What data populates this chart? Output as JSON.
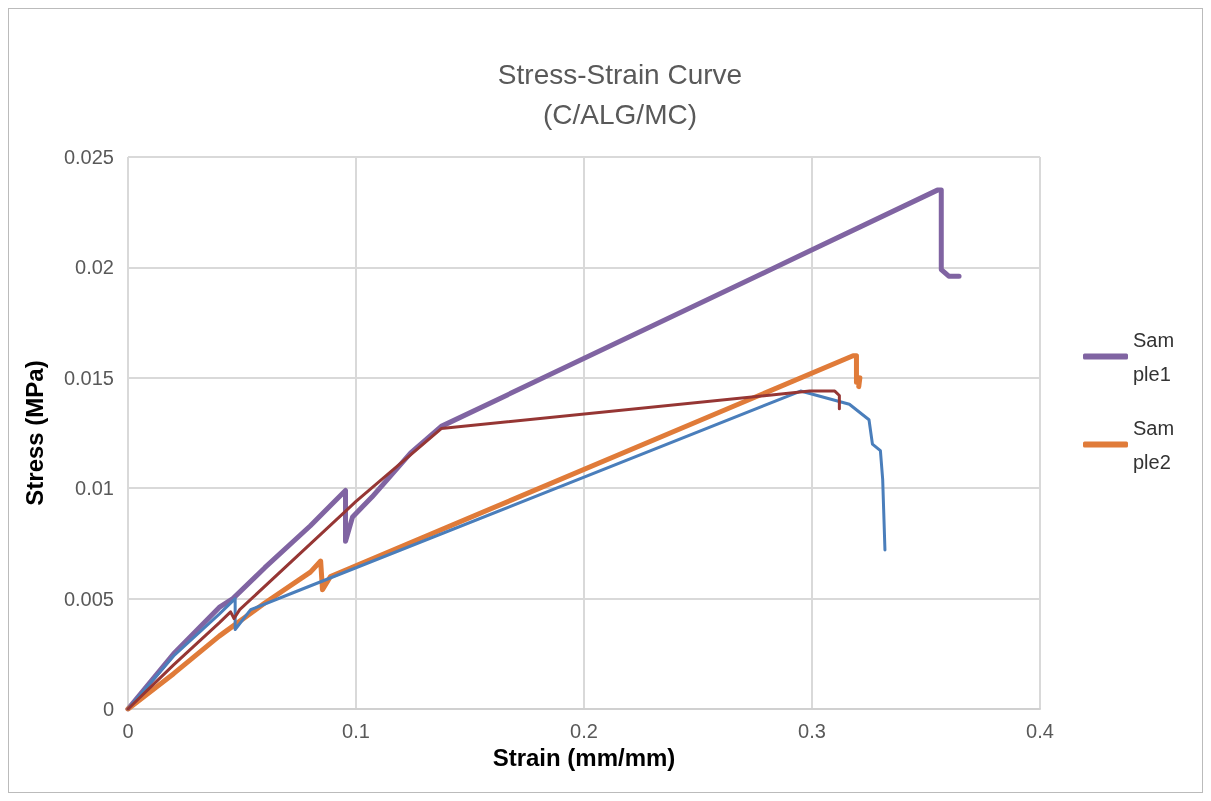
{
  "chart_data": {
    "type": "line",
    "title": "Stress-Strain Curve\n(C/ALG/MC)",
    "xlabel": "Strain (mm/mm)",
    "ylabel": "Stress (MPa)",
    "xlim": [
      0,
      0.4
    ],
    "xticks": [
      0,
      0.1,
      0.2,
      0.3,
      0.4
    ],
    "ylim": [
      0,
      0.025
    ],
    "yticks": [
      0,
      0.005,
      0.01,
      0.015,
      0.02,
      0.025
    ],
    "grid": true,
    "legend": "right",
    "marker": "none",
    "line_style": "solid",
    "series": [
      {
        "name": "Sample1",
        "color": "#8064a2",
        "x": [
          0,
          0.02,
          0.04,
          0.046,
          0.06,
          0.08,
          0.0954,
          0.0954,
          0.0985,
          0.107,
          0.124,
          0.1374,
          0.355,
          0.3567,
          0.3567,
          0.3567,
          0.36,
          0.3645
        ],
        "values": [
          0,
          0.0025,
          0.0046,
          0.005,
          0.0064,
          0.0083,
          0.0099,
          0.0076,
          0.0087,
          0.0096,
          0.0116,
          0.0128,
          0.0235,
          0.0235,
          0.021,
          0.0199,
          0.0196,
          0.0196
        ]
      },
      {
        "name": "Sample2",
        "color": "#e07b39",
        "x": [
          0,
          0.02,
          0.04,
          0.06,
          0.08,
          0.0845,
          0.0853,
          0.0888,
          0.318,
          0.3195,
          0.3195,
          0.321,
          0.3205
        ],
        "values": [
          0,
          0.0016,
          0.0033,
          0.0048,
          0.0062,
          0.0067,
          0.0054,
          0.006,
          0.016,
          0.016,
          0.0148,
          0.015,
          0.0146
        ]
      },
      {
        "color": "#4a7ebb",
        "x": [
          0,
          0.02,
          0.04,
          0.047,
          0.047,
          0.0538,
          0.0757,
          0.295,
          0.3164,
          0.325,
          0.3265,
          0.33,
          0.331,
          0.332
        ],
        "values": [
          0,
          0.0024,
          0.0043,
          0.005,
          0.0036,
          0.0045,
          0.0054,
          0.0144,
          0.0138,
          0.0131,
          0.012,
          0.0117,
          0.0104,
          0.0072
        ]
      },
      {
        "color": "#963634",
        "x": [
          0,
          0.02,
          0.04,
          0.045,
          0.0465,
          0.049,
          0.1,
          0.1374,
          0.299,
          0.31,
          0.312,
          0.312
        ],
        "values": [
          0,
          0.002,
          0.0039,
          0.0044,
          0.0041,
          0.0045,
          0.0094,
          0.0127,
          0.0144,
          0.0144,
          0.0142,
          0.0136
        ]
      }
    ]
  }
}
